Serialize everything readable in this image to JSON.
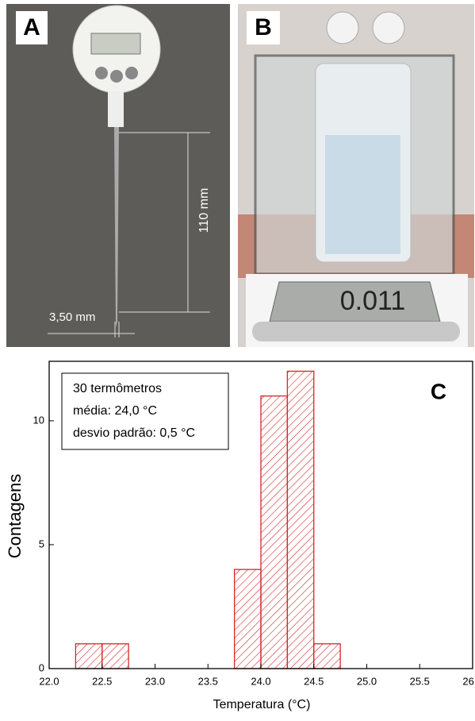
{
  "panels": {
    "A": {
      "label": "A",
      "length": "110 mm",
      "diameter": "3,50 mm"
    },
    "B": {
      "label": "B",
      "display": "0.011"
    }
  },
  "chart_data": {
    "type": "histogram",
    "panel_label": "C",
    "xlabel": "Temperatura (°C)",
    "ylabel": "Contagens",
    "legend_lines": [
      "30 termômetros",
      "média: 24,0 °C",
      "desvio padrão: 0,5 °C"
    ],
    "bins": [
      22.25,
      22.5,
      22.75,
      23.0,
      23.25,
      23.5,
      23.75,
      24.0,
      24.25,
      24.5,
      24.75
    ],
    "counts": [
      1,
      1,
      0,
      0,
      0,
      0,
      4,
      11,
      12,
      1
    ],
    "color": "#d62728",
    "xlim": [
      22,
      26
    ],
    "xticks": [
      {
        "value": 22,
        "label": "22.0"
      },
      {
        "value": 22.5,
        "label": "22.5"
      },
      {
        "value": 23,
        "label": "23.0"
      },
      {
        "value": 23.5,
        "label": "23.5"
      },
      {
        "value": 24,
        "label": "24.0"
      },
      {
        "value": 24.5,
        "label": "24.5"
      },
      {
        "value": 25,
        "label": "25.0"
      },
      {
        "value": 25.5,
        "label": "25.5"
      },
      {
        "value": 26,
        "label": "26.0"
      }
    ],
    "ylim": [
      0,
      12.4
    ],
    "yticks": [
      0,
      5,
      10
    ]
  }
}
